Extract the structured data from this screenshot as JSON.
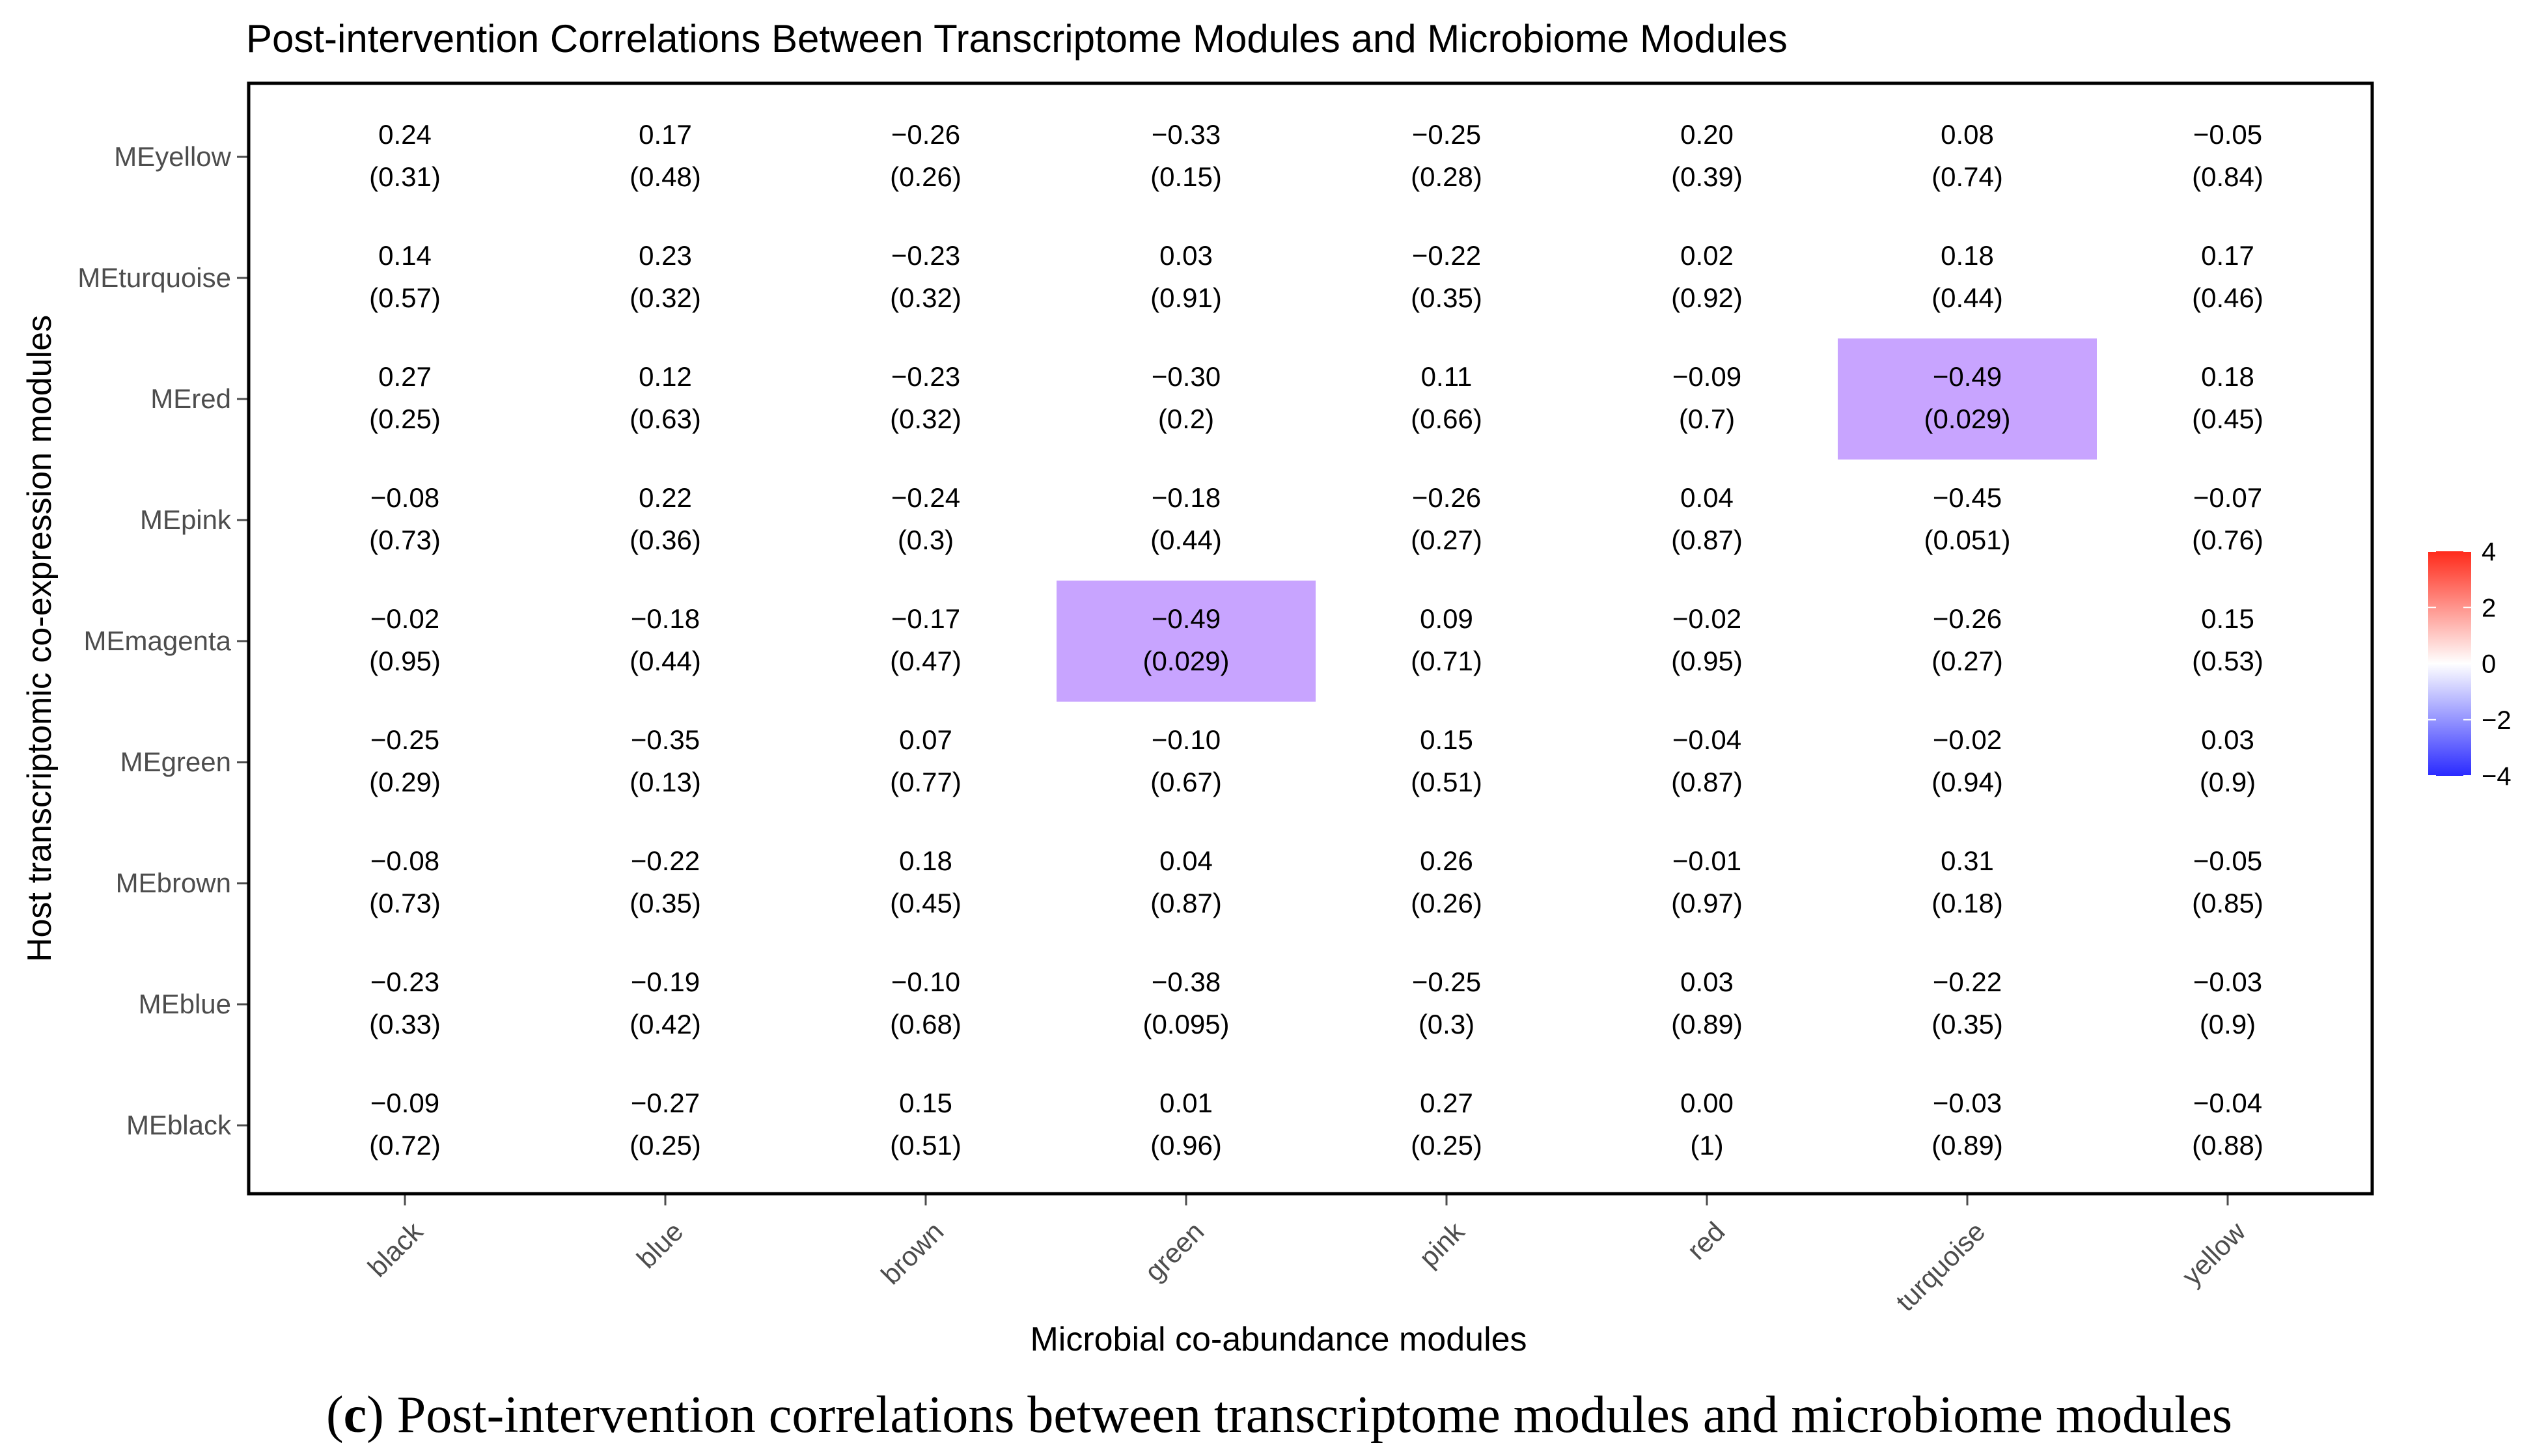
{
  "chart_data": {
    "type": "heatmap",
    "title": "Post-intervention Correlations Between Transcriptome Modules and Microbiome Modules",
    "xlabel": "Microbial co-abundance modules",
    "ylabel": "Host transcriptomic co-expression modules",
    "x_categories": [
      "black",
      "blue",
      "brown",
      "green",
      "pink",
      "red",
      "turquoise",
      "yellow"
    ],
    "y_categories": [
      "MEyellow",
      "MEturquoise",
      "MEred",
      "MEpink",
      "MEmagenta",
      "MEgreen",
      "MEbrown",
      "MEblue",
      "MEblack"
    ],
    "correlations": [
      [
        "0.24",
        "0.17",
        "−0.26",
        "−0.33",
        "−0.25",
        "0.20",
        "0.08",
        "−0.05"
      ],
      [
        "0.14",
        "0.23",
        "−0.23",
        "0.03",
        "−0.22",
        "0.02",
        "0.18",
        "0.17"
      ],
      [
        "0.27",
        "0.12",
        "−0.23",
        "−0.30",
        "0.11",
        "−0.09",
        "−0.49",
        "0.18"
      ],
      [
        "−0.08",
        "0.22",
        "−0.24",
        "−0.18",
        "−0.26",
        "0.04",
        "−0.45",
        "−0.07"
      ],
      [
        "−0.02",
        "−0.18",
        "−0.17",
        "−0.49",
        "0.09",
        "−0.02",
        "−0.26",
        "0.15"
      ],
      [
        "−0.25",
        "−0.35",
        "0.07",
        "−0.10",
        "0.15",
        "−0.04",
        "−0.02",
        "0.03"
      ],
      [
        "−0.08",
        "−0.22",
        "0.18",
        "0.04",
        "0.26",
        "−0.01",
        "0.31",
        "−0.05"
      ],
      [
        "−0.23",
        "−0.19",
        "−0.10",
        "−0.38",
        "−0.25",
        "0.03",
        "−0.22",
        "−0.03"
      ],
      [
        "−0.09",
        "−0.27",
        "0.15",
        "0.01",
        "0.27",
        "0.00",
        "−0.03",
        "−0.04"
      ]
    ],
    "p_values": [
      [
        "(0.31)",
        "(0.48)",
        "(0.26)",
        "(0.15)",
        "(0.28)",
        "(0.39)",
        "(0.74)",
        "(0.84)"
      ],
      [
        "(0.57)",
        "(0.32)",
        "(0.32)",
        "(0.91)",
        "(0.35)",
        "(0.92)",
        "(0.44)",
        "(0.46)"
      ],
      [
        "(0.25)",
        "(0.63)",
        "(0.32)",
        "(0.2)",
        "(0.66)",
        "(0.7)",
        "(0.029)",
        "(0.45)"
      ],
      [
        "(0.73)",
        "(0.36)",
        "(0.3)",
        "(0.44)",
        "(0.27)",
        "(0.87)",
        "(0.051)",
        "(0.76)"
      ],
      [
        "(0.95)",
        "(0.44)",
        "(0.47)",
        "(0.029)",
        "(0.71)",
        "(0.95)",
        "(0.27)",
        "(0.53)"
      ],
      [
        "(0.29)",
        "(0.13)",
        "(0.77)",
        "(0.67)",
        "(0.51)",
        "(0.87)",
        "(0.94)",
        "(0.9)"
      ],
      [
        "(0.73)",
        "(0.35)",
        "(0.45)",
        "(0.87)",
        "(0.26)",
        "(0.97)",
        "(0.18)",
        "(0.85)"
      ],
      [
        "(0.33)",
        "(0.42)",
        "(0.68)",
        "(0.095)",
        "(0.3)",
        "(0.89)",
        "(0.35)",
        "(0.9)"
      ],
      [
        "(0.72)",
        "(0.25)",
        "(0.51)",
        "(0.96)",
        "(0.25)",
        "(1)",
        "(0.89)",
        "(0.88)"
      ]
    ],
    "highlighted_cells": [
      {
        "row": "MEred",
        "col": "turquoise"
      },
      {
        "row": "MEmagenta",
        "col": "green"
      }
    ],
    "highlight_color": "#c8a4ff",
    "legend": {
      "ticks": [
        "4",
        "2",
        "0",
        "−2",
        "−4"
      ],
      "range": [
        -4,
        4
      ],
      "colors": {
        "high": "#ff2a1a",
        "mid": "#ffffff",
        "low": "#2a2aff"
      },
      "position": "right"
    }
  },
  "caption": {
    "label": "c",
    "text": "Post-intervention correlations between transcriptome modules and microbiome modules"
  }
}
